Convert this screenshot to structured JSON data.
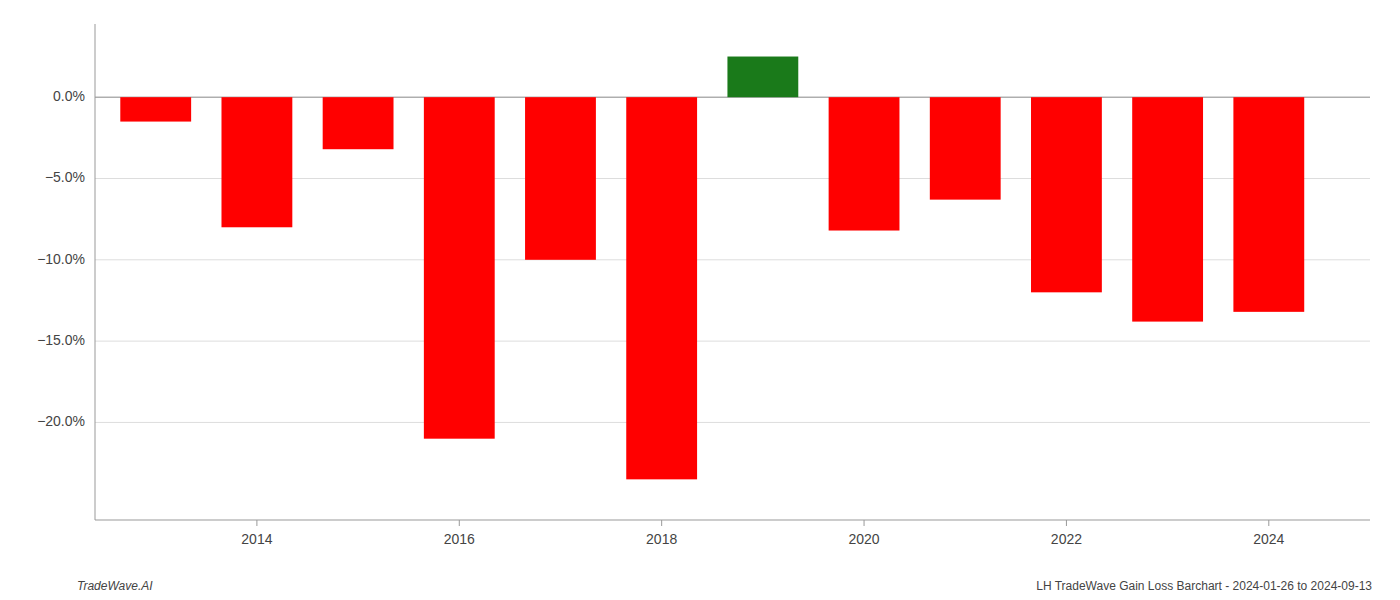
{
  "chart_data": {
    "type": "bar",
    "x": [
      2013,
      2014,
      2015,
      2016,
      2017,
      2018,
      2019,
      2020,
      2021,
      2022,
      2023,
      2024
    ],
    "values": [
      -1.5,
      -8.0,
      -3.2,
      -21.0,
      -10.0,
      -23.5,
      2.5,
      -8.2,
      -6.3,
      -12.0,
      -13.8,
      -13.2
    ],
    "colors": [
      "#ff0000",
      "#ff0000",
      "#ff0000",
      "#ff0000",
      "#ff0000",
      "#ff0000",
      "#1a7a1a",
      "#ff0000",
      "#ff0000",
      "#ff0000",
      "#ff0000",
      "#ff0000"
    ],
    "xlim": [
      2012.4,
      2025.0
    ],
    "xticks": [
      2014,
      2016,
      2018,
      2020,
      2022,
      2024
    ],
    "ylim": [
      -26,
      4.5
    ],
    "yticks": [
      {
        "value": 0.0,
        "label": "0.0%"
      },
      {
        "value": -5.0,
        "label": "−5.0%"
      },
      {
        "value": -10.0,
        "label": "−10.0%"
      },
      {
        "value": -15.0,
        "label": "−15.0%"
      },
      {
        "value": -20.0,
        "label": "−20.0%"
      }
    ],
    "grid": true,
    "annotations": [
      "TradeWave.AI",
      "LH TradeWave Gain Loss Barchart - 2024-01-26 to 2024-09-13"
    ]
  }
}
